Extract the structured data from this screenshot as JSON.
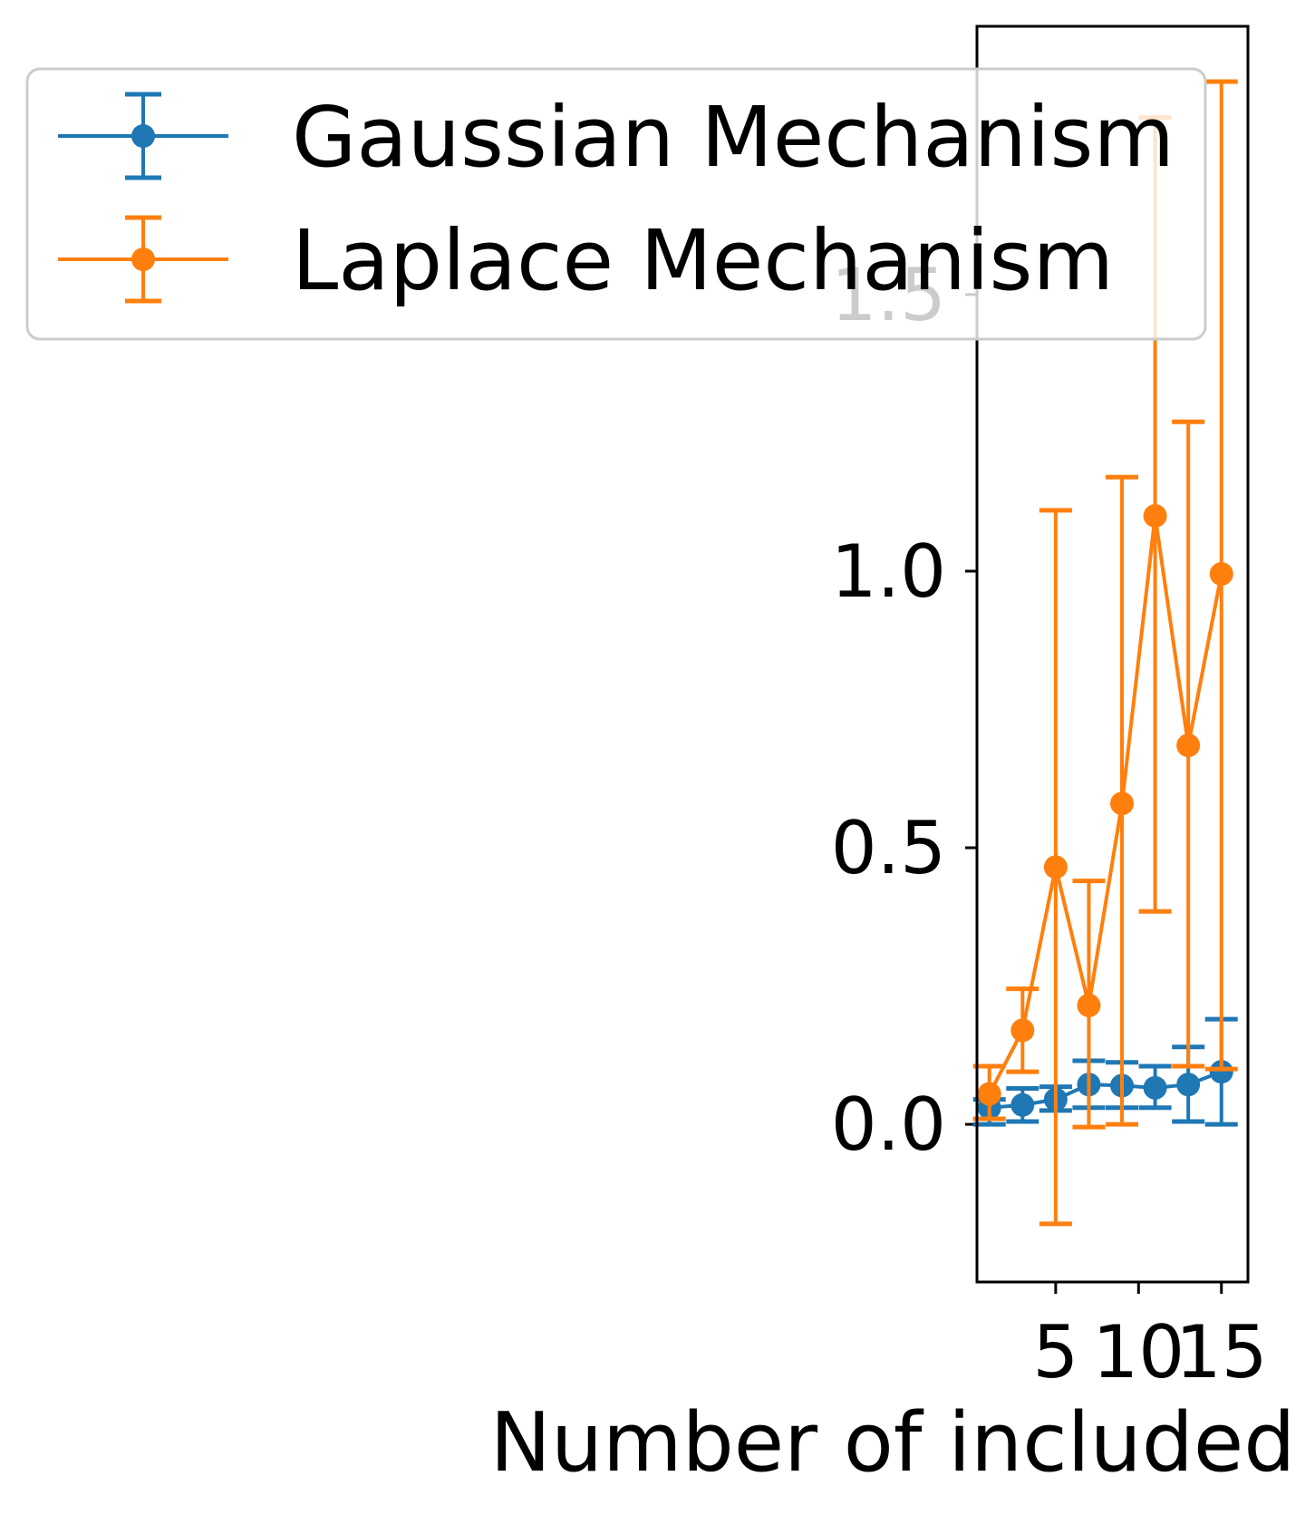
{
  "chart_data": {
    "type": "line",
    "xlabel": "Number of included",
    "ylabel": "",
    "xlim": [
      0.25,
      16.6
    ],
    "ylim": [
      -0.285,
      1.985
    ],
    "xticks": [
      5,
      10,
      15
    ],
    "xtick_labels": [
      "5",
      "10",
      "15"
    ],
    "yticks": [
      0.0,
      0.5,
      1.0,
      1.5
    ],
    "ytick_labels": [
      "0.0",
      "0.5",
      "1.0",
      "1.5"
    ],
    "grid": false,
    "legend_position": "upper-left",
    "x": [
      1,
      3,
      5,
      7,
      9,
      11,
      13,
      15
    ],
    "series": [
      {
        "name": "Gaussian Mechanism",
        "color": "#1f77b4",
        "values": [
          0.03,
          0.035,
          0.045,
          0.072,
          0.07,
          0.066,
          0.072,
          0.095
        ],
        "err_low": [
          0.0,
          0.005,
          0.025,
          0.03,
          0.03,
          0.03,
          0.005,
          0.0
        ],
        "err_high": [
          0.045,
          0.065,
          0.068,
          0.115,
          0.112,
          0.105,
          0.14,
          0.19
        ]
      },
      {
        "name": "Laplace Mechanism",
        "color": "#ff7f0e",
        "values": [
          0.055,
          0.17,
          0.465,
          0.215,
          0.58,
          1.1,
          0.685,
          0.995
        ],
        "err_low": [
          0.01,
          0.095,
          -0.18,
          -0.005,
          0.0,
          0.385,
          0.105,
          0.1
        ],
        "err_high": [
          0.105,
          0.245,
          1.11,
          0.44,
          1.17,
          1.82,
          1.27,
          1.885
        ]
      }
    ]
  }
}
